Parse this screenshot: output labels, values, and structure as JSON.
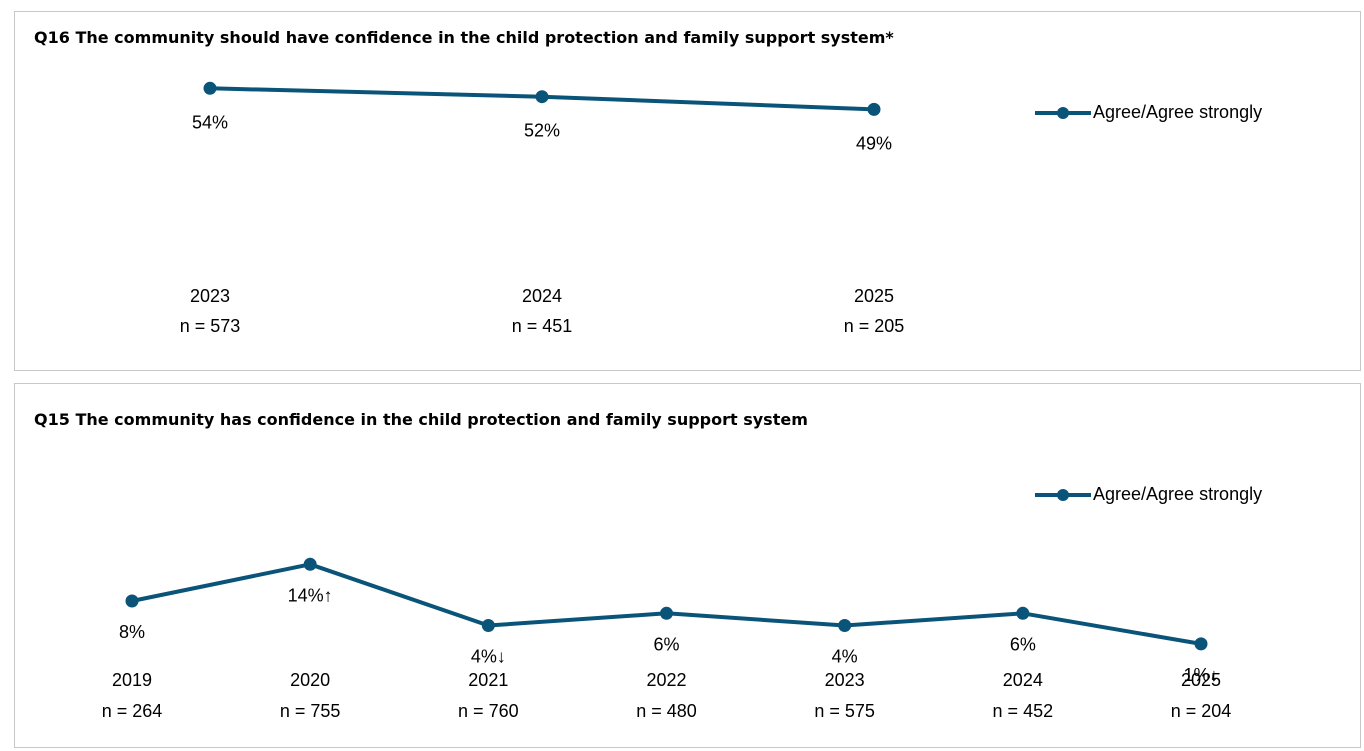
{
  "colors": {
    "series": "#0b5479",
    "border": "#c8c8c8"
  },
  "chart_data": [
    {
      "type": "line",
      "title": "Q16 The community should have confidence in the child protection and family support system*",
      "categories": [
        "2023",
        "2024",
        "2025"
      ],
      "sample_sizes": [
        "n = 573",
        "n = 451",
        "n = 205"
      ],
      "series": [
        {
          "name": "Agree/Agree strongly",
          "values": [
            54,
            52,
            49
          ],
          "labels": [
            "54%",
            "52%",
            "49%"
          ]
        }
      ],
      "legend": "right"
    },
    {
      "type": "line",
      "title": "Q15 The community has confidence in the child protection and family support system",
      "categories": [
        "2019",
        "2020",
        "2021",
        "2022",
        "2023",
        "2024",
        "2025"
      ],
      "sample_sizes": [
        "n = 264",
        "n = 755",
        "n = 760",
        "n = 480",
        "n = 575",
        "n = 452",
        "n = 204"
      ],
      "series": [
        {
          "name": "Agree/Agree strongly",
          "values": [
            8,
            14,
            4,
            6,
            4,
            6,
            1
          ],
          "labels": [
            "8%",
            "14%↑",
            "4%↓",
            "6%",
            "4%",
            "6%",
            "1%↓"
          ]
        }
      ],
      "legend": "right"
    }
  ]
}
